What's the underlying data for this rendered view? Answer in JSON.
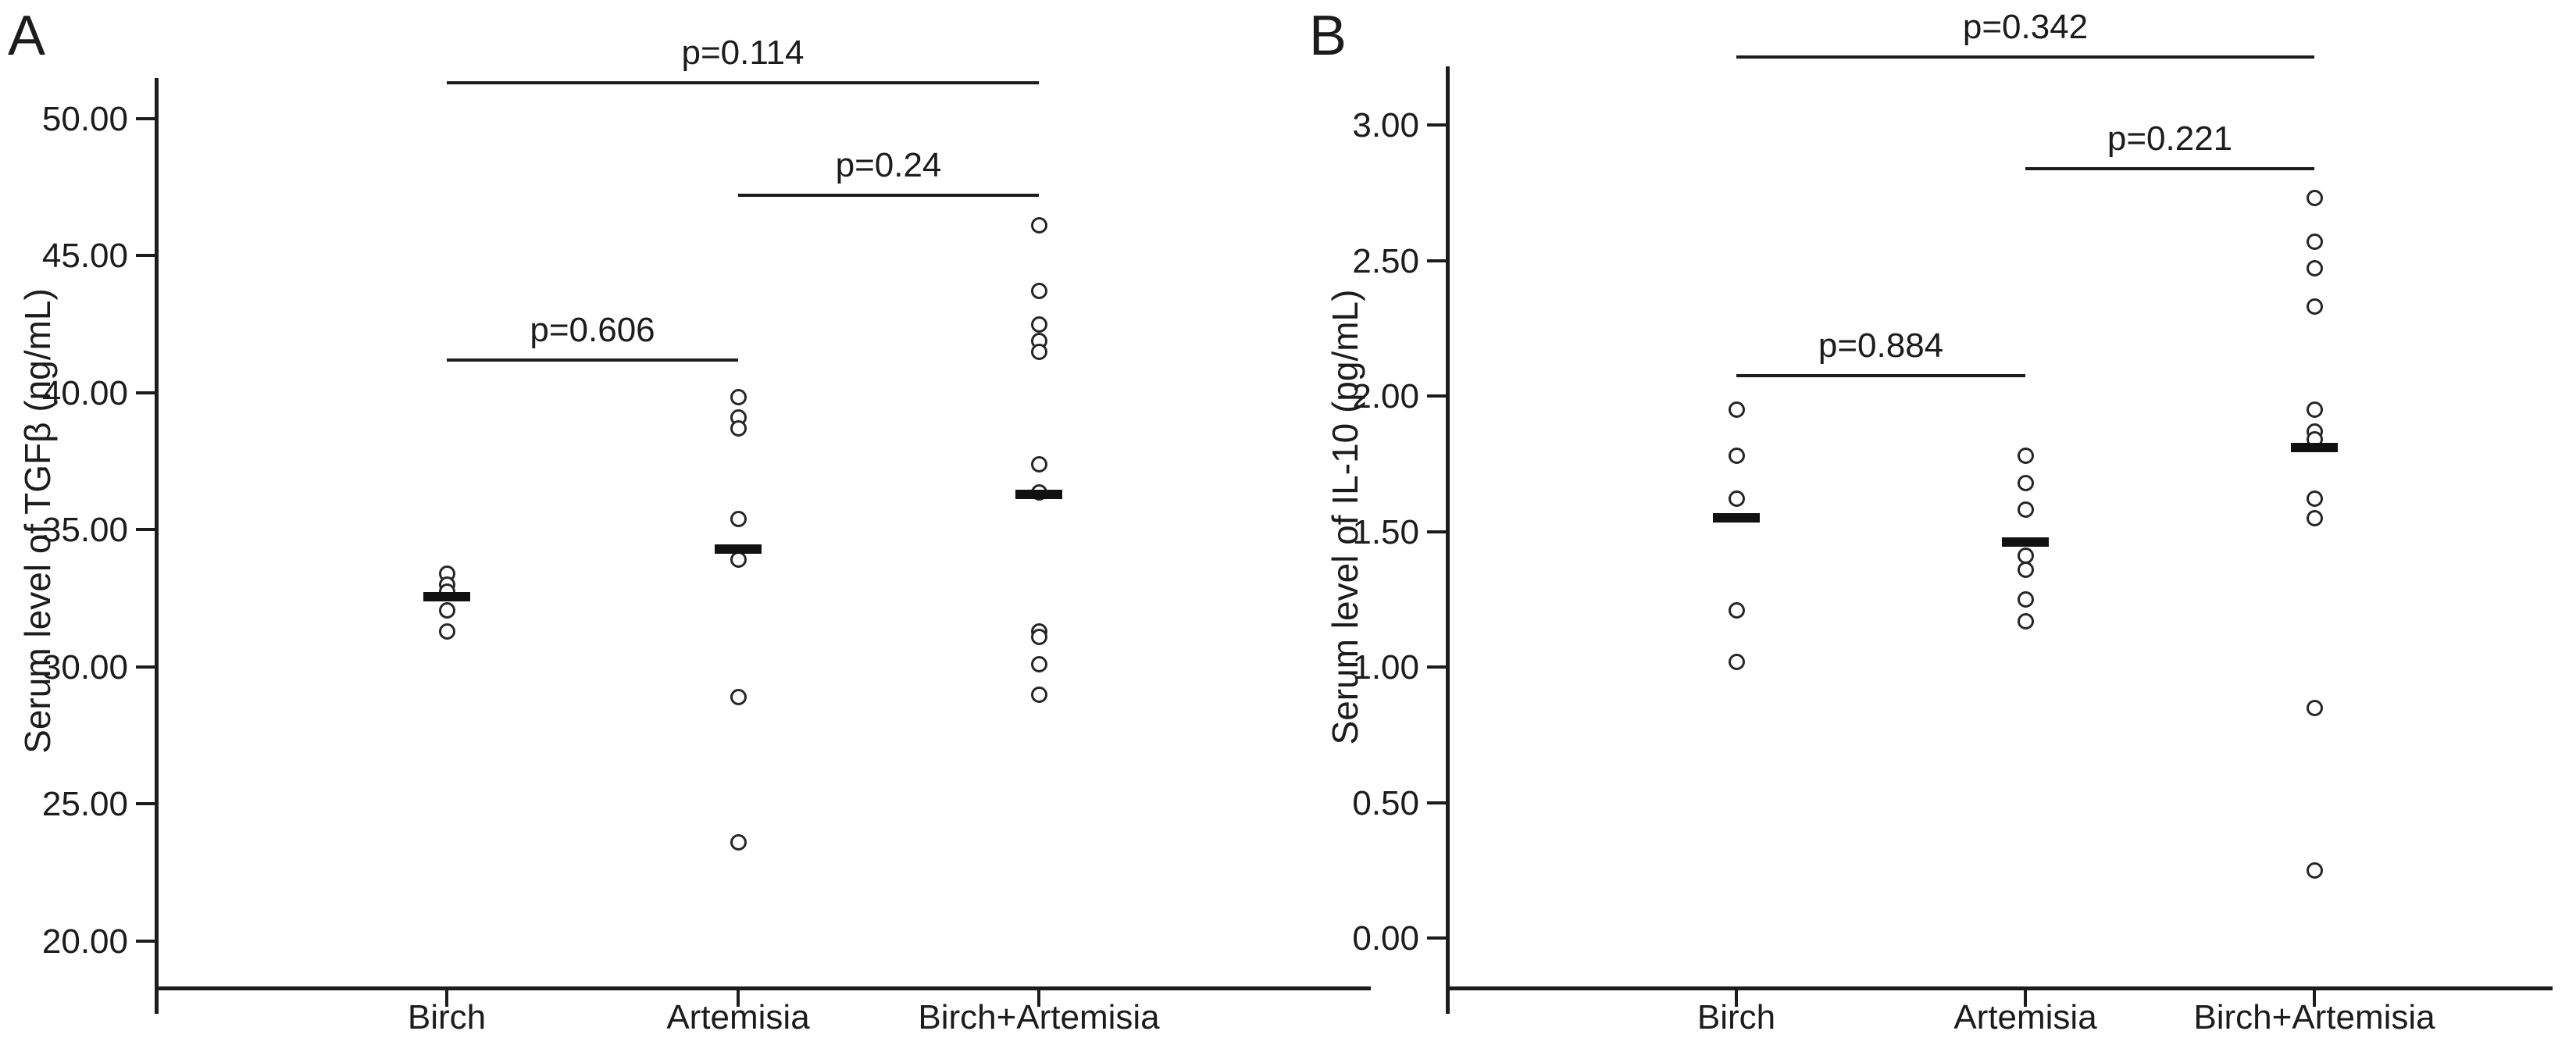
{
  "figure": {
    "background_color": "#ffffff",
    "ink_color": "#1c1c1c",
    "marker_style": "open-circle",
    "mean_marker_style": "horizontal-bar"
  },
  "chart_data": [
    {
      "type": "scatter",
      "panel_label": "A",
      "title": "",
      "xlabel": "",
      "ylabel": "Serum level of TGFβ (ng/mL)",
      "ylim": [
        18,
        51.5
      ],
      "grid": false,
      "legend": null,
      "yticks": [
        "50.00",
        "45.00",
        "40.00",
        "35.00",
        "30.00",
        "25.00",
        "20.00"
      ],
      "ytick_values": [
        50,
        45,
        40,
        35,
        30,
        25,
        20
      ],
      "categories": [
        "Birch",
        "Artemisia",
        "Birch+Artemisia"
      ],
      "series": [
        {
          "name": "Birch",
          "values": [
            33.4,
            33.0,
            32.75,
            32.05,
            31.3
          ],
          "mean": 32.55
        },
        {
          "name": "Artemisia",
          "values": [
            39.85,
            39.1,
            38.7,
            35.4,
            33.9,
            28.9,
            23.6
          ],
          "mean": 34.3
        },
        {
          "name": "Birch+Artemisia",
          "values": [
            46.1,
            43.7,
            42.5,
            41.9,
            41.5,
            37.4,
            36.35,
            31.3,
            31.1,
            30.1,
            29.0
          ],
          "mean": 36.3
        }
      ],
      "p_brackets": [
        {
          "label": "p=0.114",
          "from": 0,
          "to": 2,
          "y_value": 51.3
        },
        {
          "label": "p=0.24",
          "from": 1,
          "to": 2,
          "y_value": 47.2
        },
        {
          "label": "p=0.606",
          "from": 0,
          "to": 1,
          "y_value": 41.2
        }
      ]
    },
    {
      "type": "scatter",
      "panel_label": "B",
      "title": "",
      "xlabel": "",
      "ylabel": "Serum level of IL-10 (pg/mL)",
      "ylim": [
        -0.2,
        3.2
      ],
      "grid": false,
      "legend": null,
      "yticks": [
        "3.00",
        "2.50",
        "2.00",
        "1.50",
        "1.00",
        "0.50",
        "0.00"
      ],
      "ytick_values": [
        3.0,
        2.5,
        2.0,
        1.5,
        1.0,
        0.5,
        0.0
      ],
      "categories": [
        "Birch",
        "Artemisia",
        "Birch+Artemisia"
      ],
      "series": [
        {
          "name": "Birch",
          "values": [
            1.95,
            1.78,
            1.62,
            1.21,
            1.02
          ],
          "mean": 1.55
        },
        {
          "name": "Artemisia",
          "values": [
            1.78,
            1.68,
            1.58,
            1.41,
            1.36,
            1.25,
            1.17
          ],
          "mean": 1.46
        },
        {
          "name": "Birch+Artemisia",
          "values": [
            2.73,
            2.57,
            2.47,
            2.33,
            1.95,
            1.87,
            1.84,
            1.62,
            1.55,
            0.85,
            0.25
          ],
          "mean": 1.81
        }
      ],
      "p_brackets": [
        {
          "label": "p=0.342",
          "from": 0,
          "to": 2,
          "y_value": 3.25
        },
        {
          "label": "p=0.221",
          "from": 1,
          "to": 2,
          "y_value": 2.84
        },
        {
          "label": "p=0.884",
          "from": 0,
          "to": 1,
          "y_value": 2.075
        }
      ]
    }
  ]
}
